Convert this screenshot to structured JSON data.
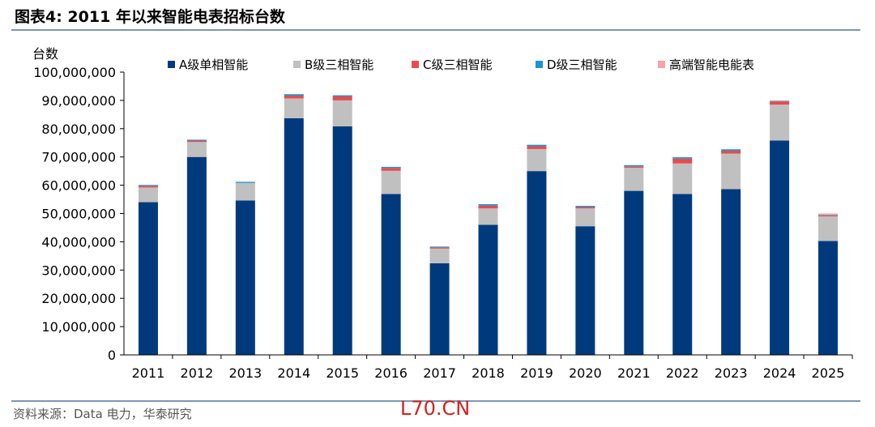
{
  "header": {
    "title": "图表4:  2011 年以来智能电表招标台数"
  },
  "footer": {
    "source": "资料来源：Data 电力，华泰研究",
    "watermark": "L70.CN"
  },
  "colors": {
    "rule": "#7d95b3"
  },
  "chart_data": {
    "type": "bar",
    "stacked": true,
    "ylabel": "台数",
    "ylim": [
      0,
      100000000
    ],
    "yticks": [
      "0",
      "10,000,000",
      "20,000,000",
      "30,000,000",
      "40,000,000",
      "50,000,000",
      "60,000,000",
      "70,000,000",
      "80,000,000",
      "90,000,000",
      "100,000,000"
    ],
    "legend_position": "top",
    "grid": false,
    "categories": [
      "2011",
      "2012",
      "2013",
      "2014",
      "2015",
      "2016",
      "2017",
      "2018",
      "2019",
      "2020",
      "2021",
      "2022",
      "2023",
      "2024",
      "2025"
    ],
    "series": [
      {
        "name": "A级单相智能",
        "color": "#003a7d",
        "values": [
          54000000,
          70000000,
          54600000,
          83700000,
          80800000,
          56900000,
          32400000,
          46000000,
          65000000,
          45500000,
          58000000,
          56900000,
          58600000,
          75800000,
          40300000
        ]
      },
      {
        "name": "B级三相智能",
        "color": "#c0c0c0",
        "values": [
          5200000,
          5300000,
          6200000,
          7000000,
          9200000,
          8200000,
          5200000,
          5800000,
          7800000,
          6300000,
          8200000,
          10800000,
          12600000,
          12700000,
          8700000
        ]
      },
      {
        "name": "C级三相智能",
        "color": "#e84b4b",
        "values": [
          600000,
          500000,
          0,
          1000000,
          1400000,
          1000000,
          400000,
          1000000,
          1000000,
          500000,
          500000,
          1700000,
          1000000,
          1100000,
          300000
        ]
      },
      {
        "name": "D级三相智能",
        "color": "#1a94d2",
        "values": [
          300000,
          300000,
          400000,
          500000,
          400000,
          400000,
          300000,
          500000,
          500000,
          400000,
          400000,
          500000,
          500000,
          200000,
          200000
        ]
      },
      {
        "name": "高端智能电能表",
        "color": "#f5a3a8",
        "values": [
          0,
          0,
          0,
          0,
          0,
          0,
          0,
          0,
          0,
          0,
          0,
          0,
          0,
          200000,
          500000
        ]
      }
    ]
  }
}
